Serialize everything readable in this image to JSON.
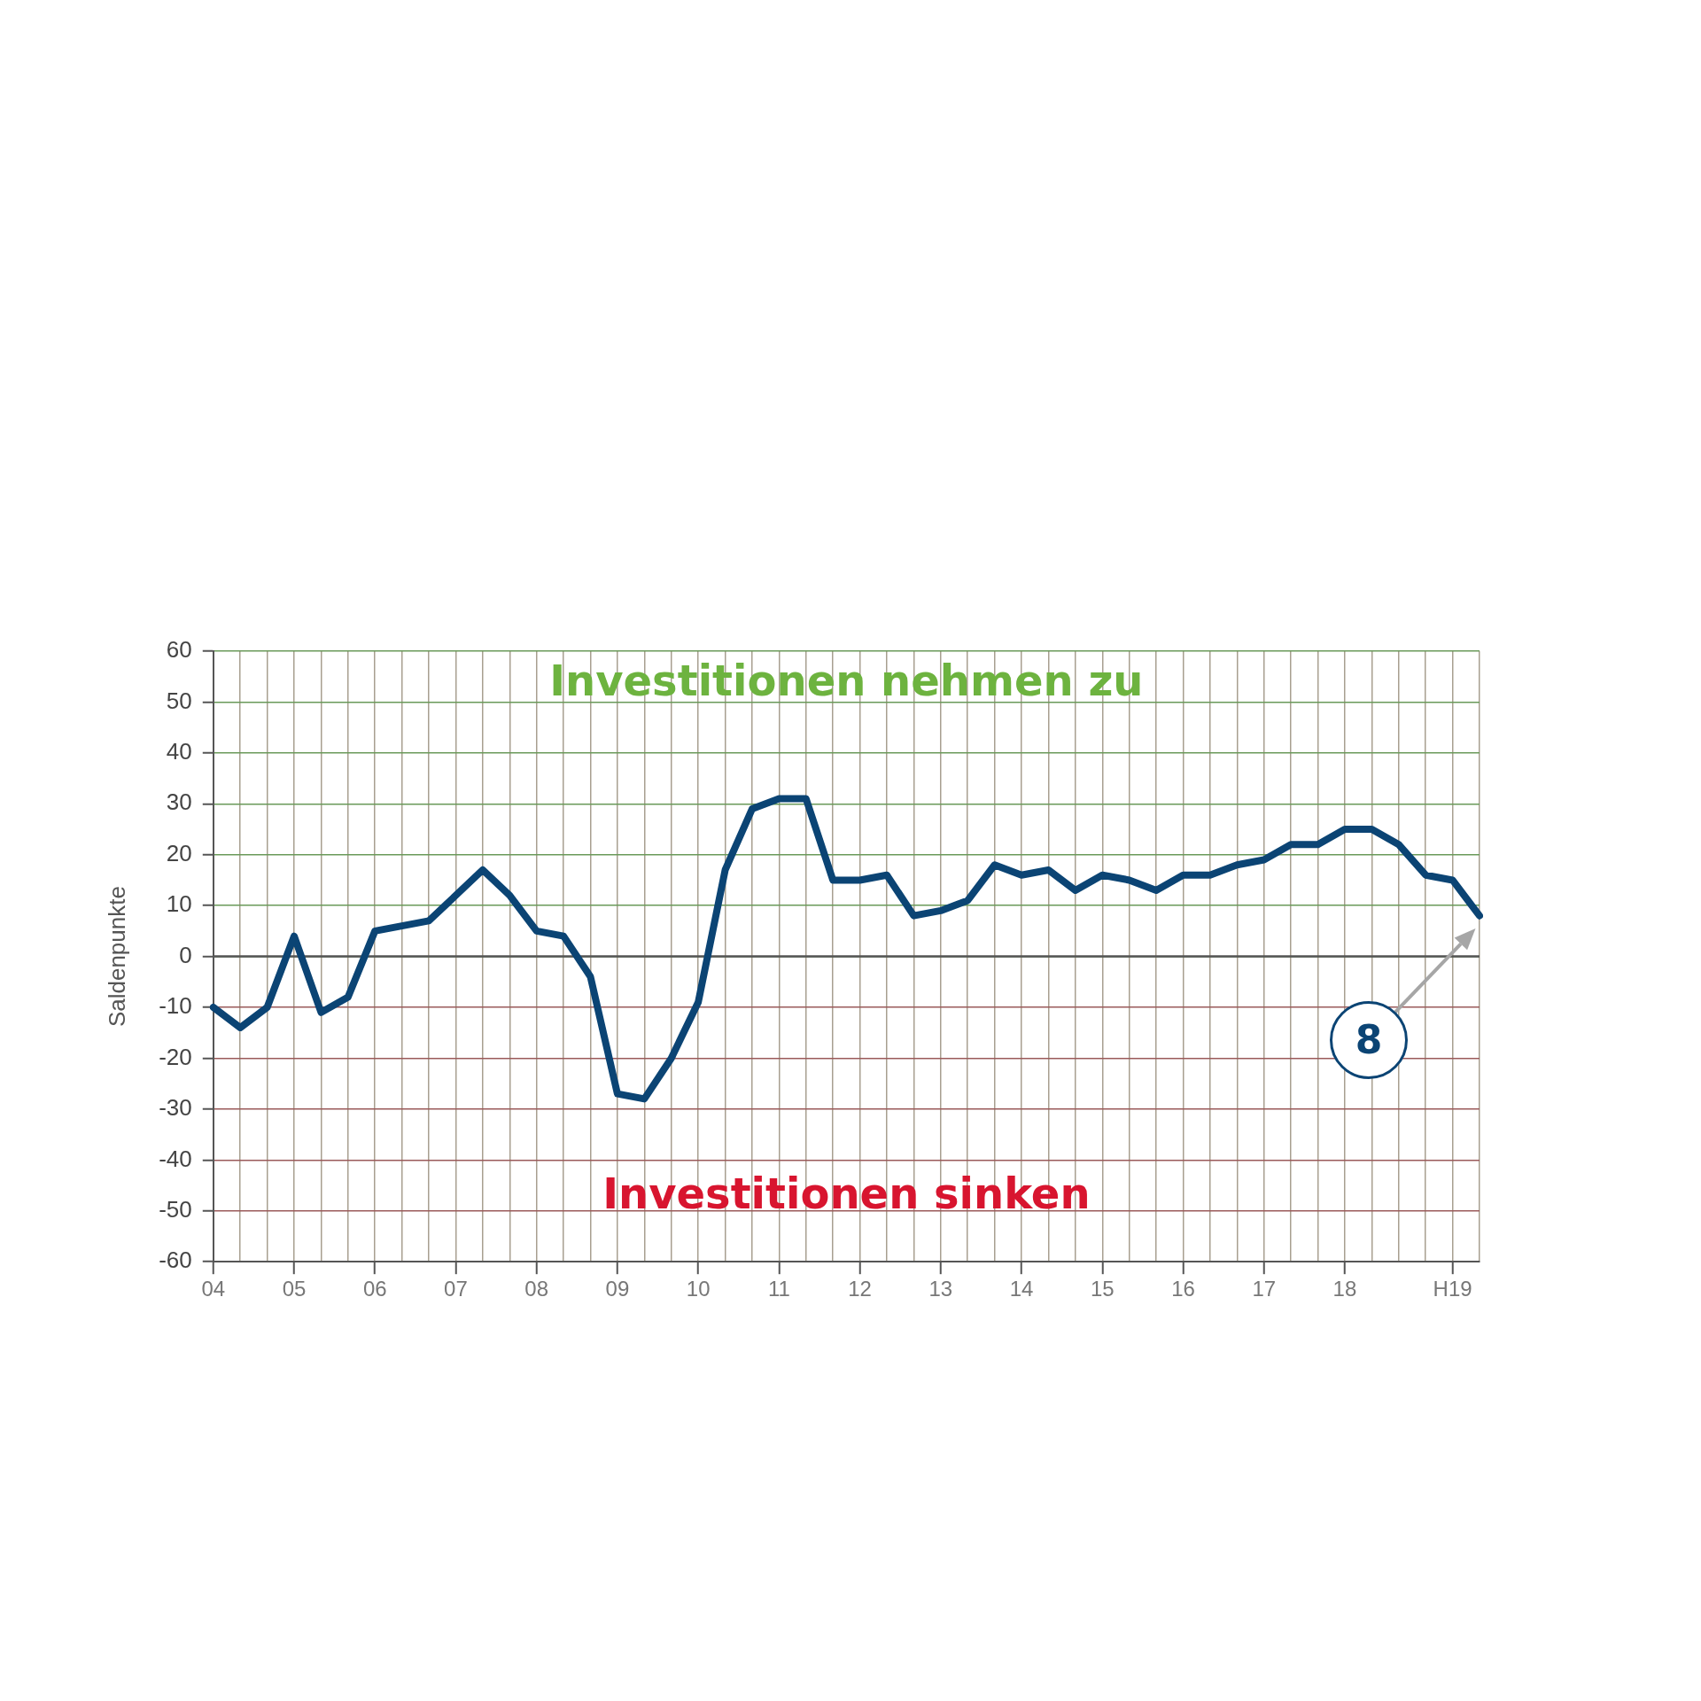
{
  "chart_data": {
    "type": "line",
    "ylabel": "Saldenpunkte",
    "categories": [
      "04",
      null,
      null,
      "05",
      null,
      null,
      "06",
      null,
      null,
      "07",
      null,
      null,
      "08",
      null,
      null,
      "09",
      null,
      null,
      "10",
      null,
      null,
      "11",
      null,
      null,
      "12",
      null,
      null,
      "13",
      null,
      null,
      "14",
      null,
      null,
      "15",
      null,
      null,
      "16",
      null,
      null,
      "17",
      null,
      null,
      "18",
      null,
      null,
      null,
      "H19",
      null
    ],
    "series": [
      {
        "color": "#0b4474",
        "values": [
          -10,
          -14,
          -10,
          4,
          -11,
          -8,
          5,
          6,
          7,
          12,
          17,
          12,
          5,
          4,
          -4,
          -27,
          -28,
          -20,
          -9,
          17,
          29,
          31,
          31,
          15,
          15,
          16,
          8,
          9,
          11,
          18,
          16,
          17,
          13,
          16,
          15,
          13,
          16,
          16,
          18,
          19,
          22,
          22,
          25,
          25,
          22,
          16,
          15,
          8
        ]
      }
    ],
    "ylim": [
      -60,
      60
    ],
    "yticks": [
      -60,
      -50,
      -40,
      -30,
      -20,
      -10,
      0,
      10,
      20,
      30,
      40,
      50,
      60
    ],
    "grid": true,
    "marker": "none",
    "line_style": "solid",
    "ref_lines": [
      {
        "axis": "y",
        "value": 0,
        "color": "#555555"
      }
    ],
    "annotations": [
      "Investitionen nehmen zu",
      "Investitionen sinken",
      "8"
    ]
  }
}
